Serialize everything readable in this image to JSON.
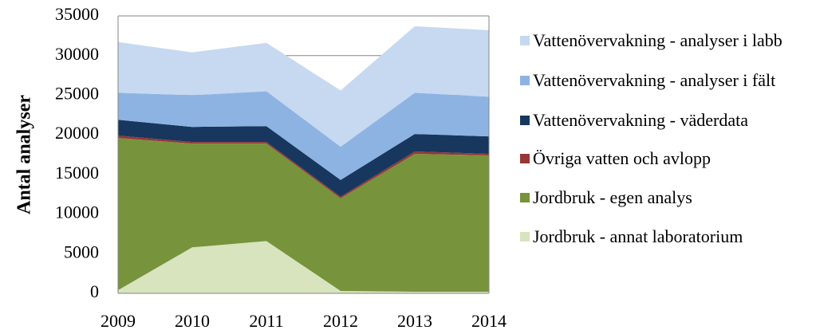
{
  "chart_data": {
    "type": "stacked-area",
    "y_label": "Antal analyser",
    "x": [
      2009,
      2010,
      2011,
      2012,
      2013,
      2014
    ],
    "xlim": [
      2009,
      2014
    ],
    "xticks": [
      2009,
      2010,
      2011,
      2012,
      2013,
      2014
    ],
    "ylim": [
      0,
      35000
    ],
    "yticks": [
      0,
      5000,
      10000,
      15000,
      20000,
      25000,
      30000,
      35000
    ],
    "grid": true,
    "legend": "right",
    "series": [
      {
        "name": "Jordbruk - annat laboratorium",
        "color": "#d7e4bd",
        "values": [
          400,
          5800,
          6600,
          300,
          200,
          200
        ]
      },
      {
        "name": "Jordbruk - egen analys",
        "color": "#77933c",
        "values": [
          19200,
          13100,
          12300,
          11700,
          17400,
          17200
        ]
      },
      {
        "name": "Övriga vatten och avlopp",
        "color": "#953735",
        "values": [
          300,
          200,
          200,
          200,
          300,
          200
        ]
      },
      {
        "name": "Vattenövervakning - väderdata",
        "color": "#17375e",
        "values": [
          2000,
          1900,
          2000,
          2100,
          2200,
          2200
        ]
      },
      {
        "name": "Vattenövervakning - analyser i fält",
        "color": "#8db3e2",
        "values": [
          3400,
          4000,
          4400,
          4200,
          5200,
          5000
        ]
      },
      {
        "name": "Vattenövervakning - analyser i labb",
        "color": "#c6d9f1",
        "values": [
          6400,
          5400,
          6100,
          7100,
          8400,
          8400
        ]
      }
    ]
  }
}
